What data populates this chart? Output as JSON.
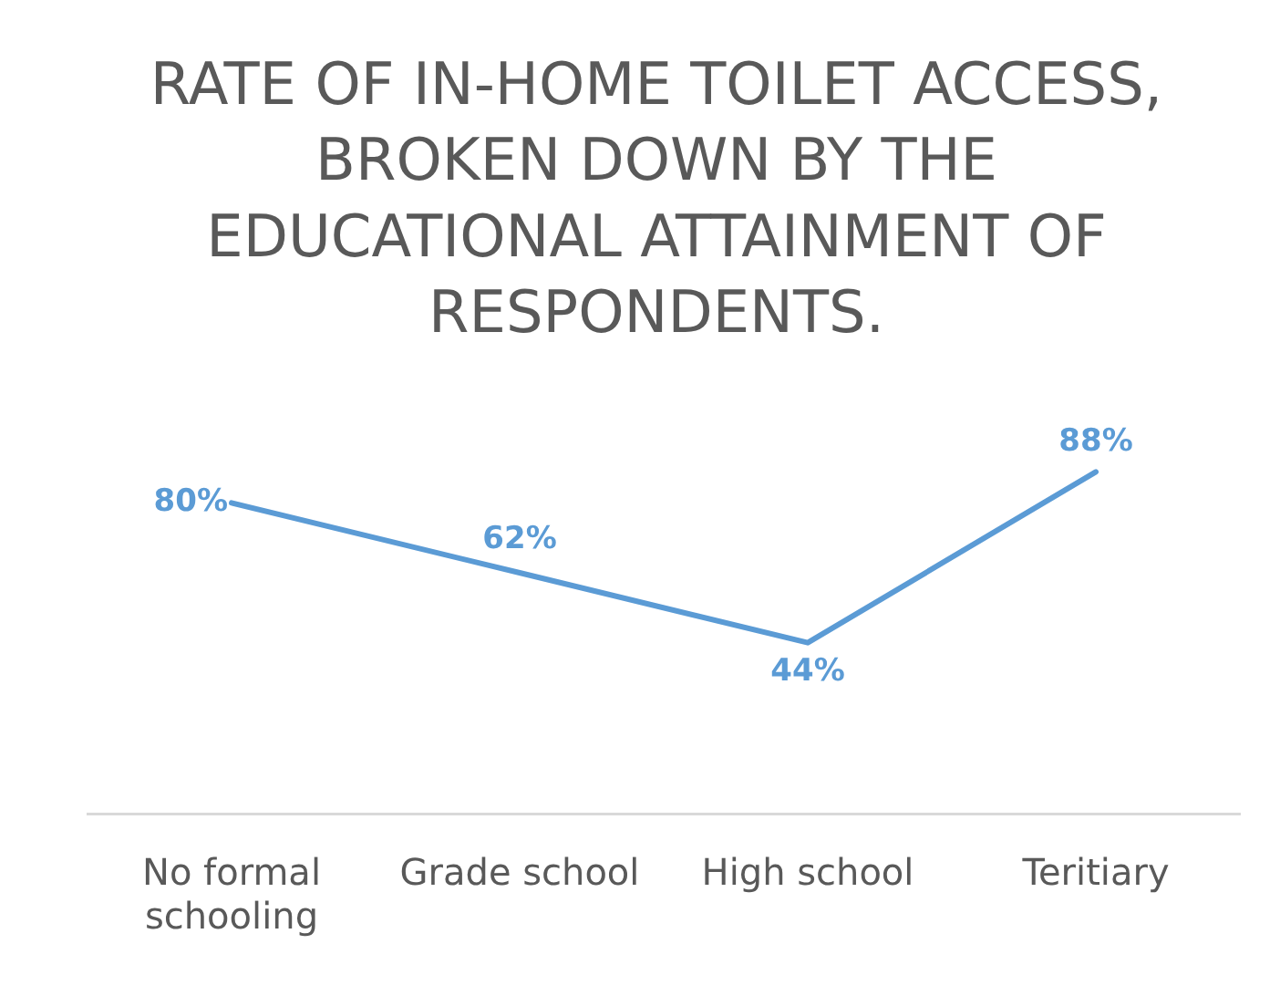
{
  "chart_data": {
    "type": "line",
    "title": "RATE OF IN-HOME TOILET ACCESS, BROKEN DOWN BY THE EDUCATIONAL ATTAINMENT OF RESPONDENTS.",
    "categories": [
      "No formal schooling",
      "Grade school",
      "High school",
      "Teritiary"
    ],
    "series": [
      {
        "color": "#5b9bd5",
        "values": [
          80,
          62,
          44,
          88
        ],
        "value_labels": [
          "80%",
          "62%",
          "44%",
          "88%"
        ]
      }
    ],
    "tick_labels": "x",
    "grid": false,
    "legend": false,
    "marker": "none",
    "line_style": "solid"
  }
}
